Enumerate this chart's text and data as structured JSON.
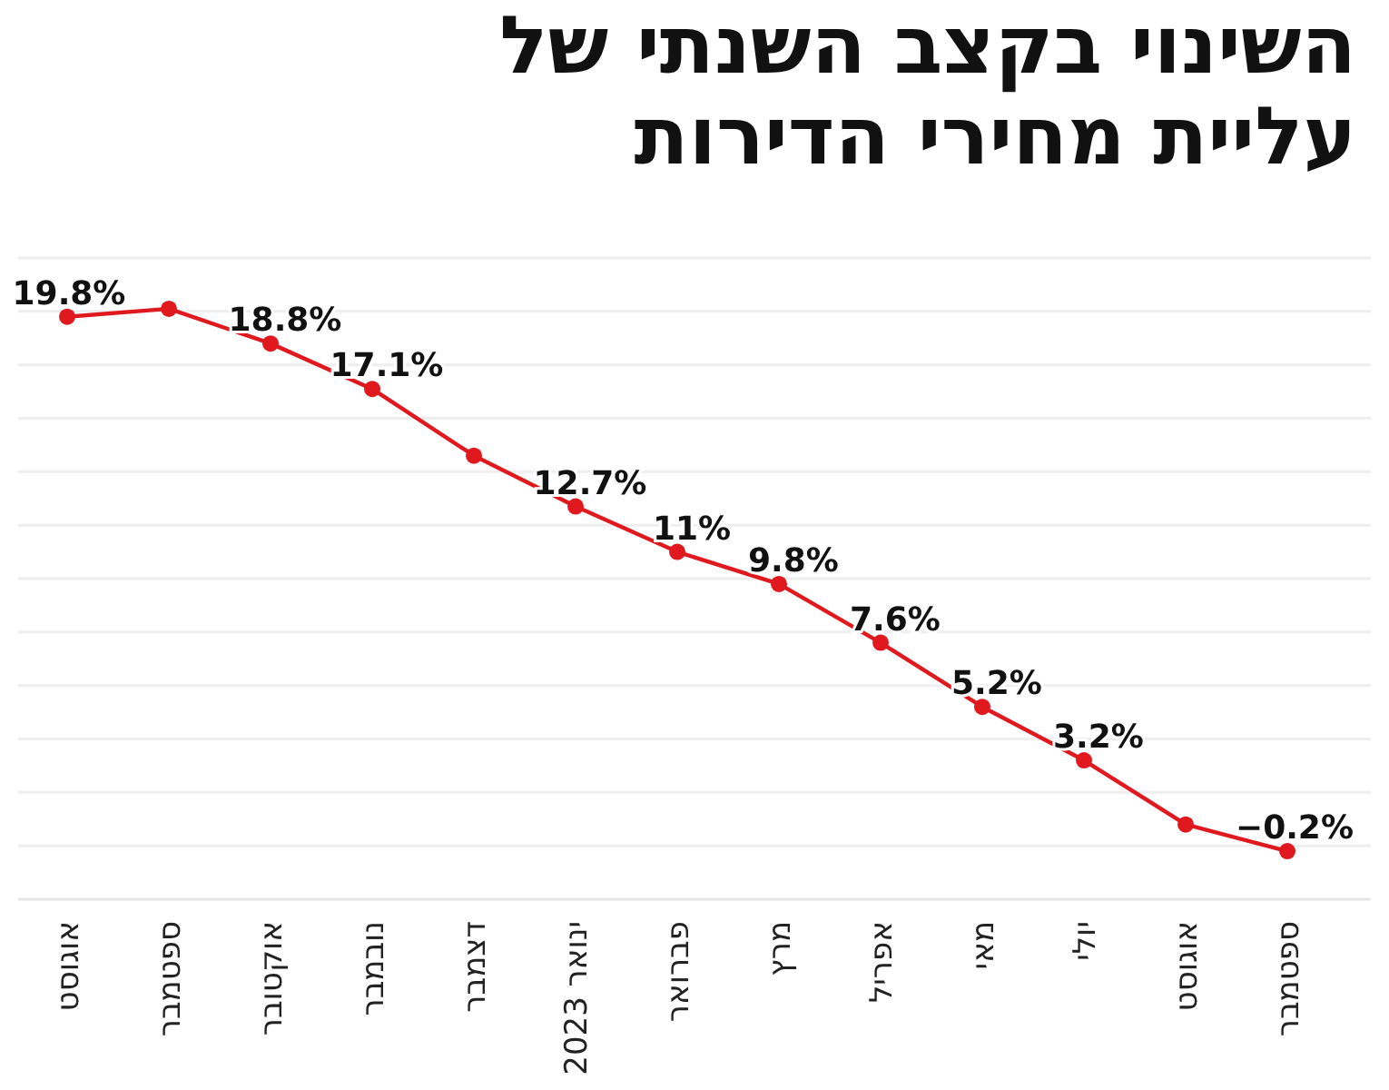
{
  "chart_data": {
    "type": "line",
    "title": "השינוי בקצב השנתי של\nעליית מחירי הדירות",
    "categories": [
      "אוגוסט",
      "ספטמבר",
      "אוקטובר",
      "נובמבר",
      "דצמבר",
      "ינואר 2023",
      "פברואר",
      "מרץ",
      "אפריל",
      "מאי",
      "יולי",
      "אוגוסט",
      "ספטמבר"
    ],
    "series": [
      {
        "color": "#e0191e",
        "values": [
          19.8,
          20.1,
          18.8,
          17.1,
          14.6,
          12.7,
          11,
          9.8,
          7.6,
          5.2,
          3.2,
          0.8,
          -0.2
        ],
        "value_labels": [
          "19.8%",
          null,
          "18.8%",
          "17.1%",
          null,
          "12.7%",
          "11%",
          "9.8%",
          "7.6%",
          "5.2%",
          "3.2%",
          null,
          "−0.2%"
        ]
      }
    ],
    "ylim": [
      -2,
      22
    ],
    "yticks": [
      {
        "value": -2,
        "label": null
      },
      {
        "value": 0,
        "label": null
      },
      {
        "value": 2,
        "label": null
      },
      {
        "value": 4,
        "label": null
      },
      {
        "value": 6,
        "label": null
      },
      {
        "value": 8,
        "label": null
      },
      {
        "value": 10,
        "label": null
      },
      {
        "value": 12,
        "label": null
      },
      {
        "value": 14,
        "label": null
      },
      {
        "value": 16,
        "label": null
      },
      {
        "value": 18,
        "label": null
      },
      {
        "value": 20,
        "label": null
      },
      {
        "value": 22,
        "label": null
      }
    ],
    "grid": "y",
    "tick_labels": "x",
    "marker": "circle",
    "line_style": "solid"
  }
}
